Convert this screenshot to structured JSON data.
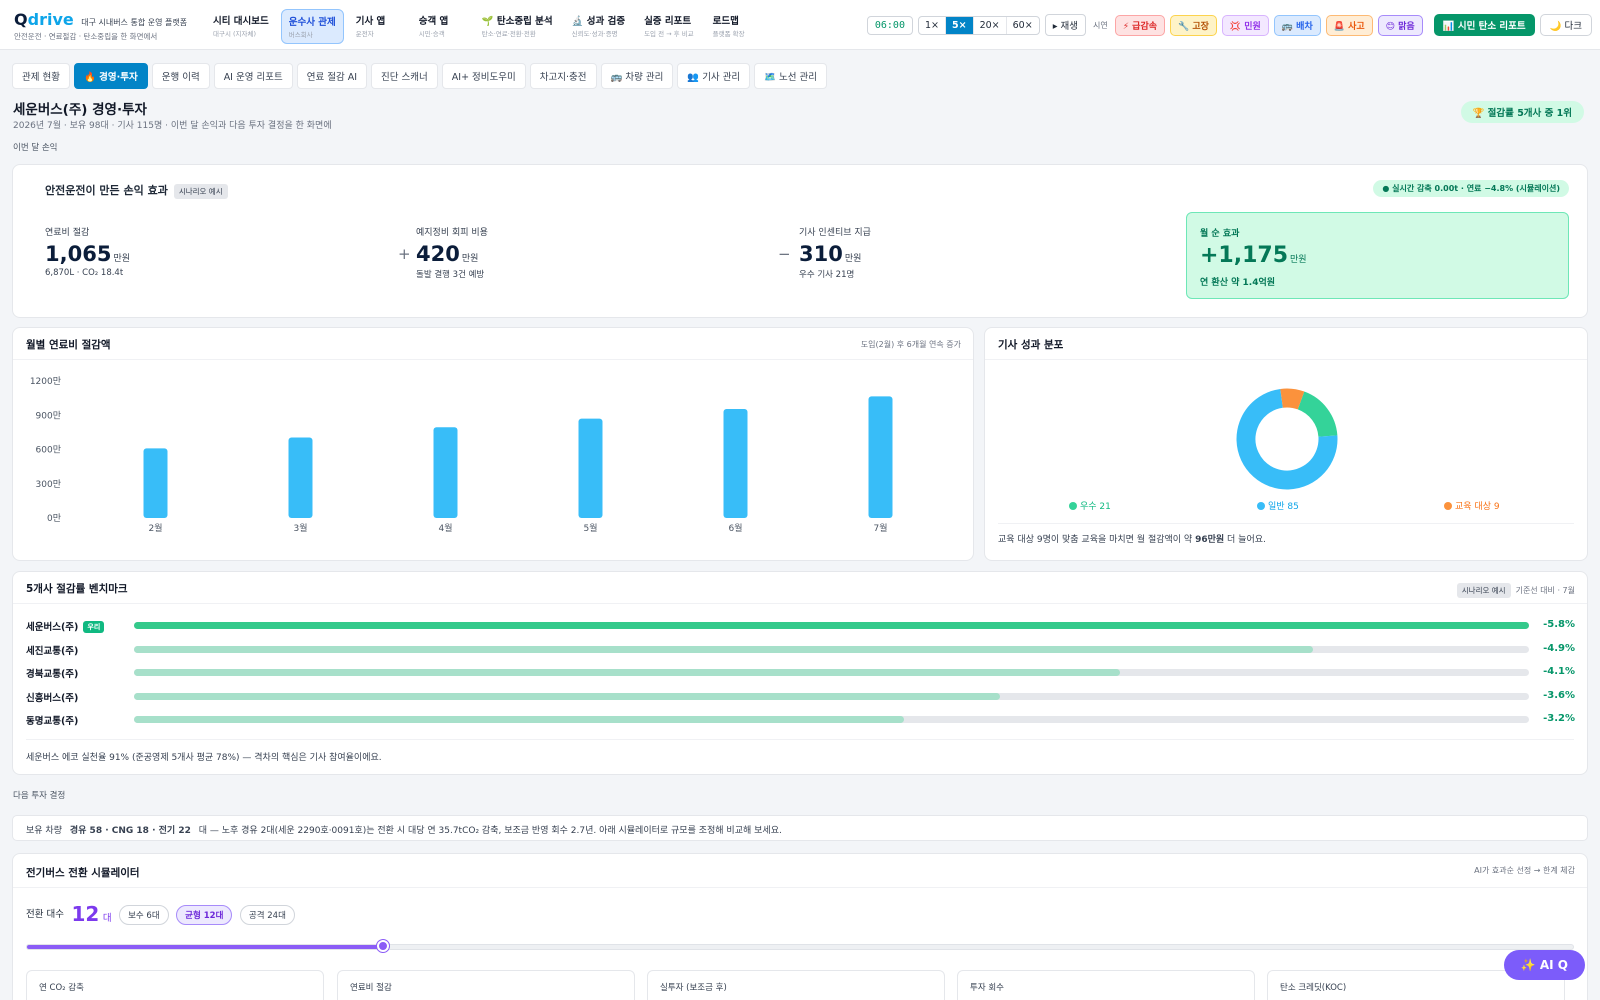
{
  "brand": {
    "name_q": "Q",
    "name_rest": "drive",
    "tagline": "대구 시내버스 통합 운영 플랫폼",
    "subline": "안전운전 · 연료절감 · 탄소중립을 한 화면에서"
  },
  "nav": [
    {
      "title": "시티 대시보드",
      "sub": "대구시 (지자체)"
    },
    {
      "title": "운수사 관제",
      "sub": "버스회사"
    },
    {
      "title": "기사 앱",
      "sub": "운전자"
    },
    {
      "title": "승객 앱",
      "sub": "시민·승객"
    },
    {
      "title": "🌱 탄소중립 분석",
      "sub": "탄소·연료·전환·전환"
    },
    {
      "title": "🔬 성과 검증",
      "sub": "신뢰도·성과·증명"
    },
    {
      "title": "실증 리포트",
      "sub": "도입 전 → 후 비교"
    },
    {
      "title": "로드맵",
      "sub": "플랫폼 확장"
    }
  ],
  "controls": {
    "clock": "06:00",
    "speeds": [
      "1×",
      "5×",
      "20×",
      "60×"
    ],
    "speed_selected": "5×",
    "play": "▸ 재생",
    "scenario_label": "시연",
    "scenarios": [
      "⚡ 급감속",
      "🔧 고장",
      "💢 민원",
      "🚌 배차",
      "🚨 사고",
      "😊 맑음"
    ],
    "report_button": "📊 시민 탄소 리포트",
    "dark_button": "🌙 다크"
  },
  "tabs": [
    "관제 현황",
    "🔥 경영·투자",
    "운행 이력",
    "AI 운영 리포트",
    "연료 절감 AI",
    "진단 스캐너",
    "AI+ 정비도우미",
    "차고지·충전",
    "🚌 차량 관리",
    "👥 기사 관리",
    "🗺️ 노선 관리"
  ],
  "tab_selected": "🔥 경영·투자",
  "page": {
    "title": "세운버스(주) 경영·투자",
    "subtitle": "2026년 7월 · 보유 98대 · 기사 115명 · 이번 달 손익과 다음 투자 결정을 한 화면에",
    "rank_badge": "🏆 절감률 5개사 중 1위"
  },
  "section_month": "이번 달 손익",
  "pl": {
    "title": "안전운전이 만든 손익 효과",
    "scenario_tag": "시나리오 예시",
    "live": "● 실시간 감축 0.00t · 연료 −4.8% (시뮬레이션)",
    "fuel": {
      "label": "연료비 절감",
      "value": "1,065",
      "unit": "만원",
      "note": "6,870L · CO₂ 18.4t"
    },
    "plus": "+",
    "maint": {
      "label": "예지정비 회피 비용",
      "value": "420",
      "unit": "만원",
      "note": "돌발 결행 3건 예방"
    },
    "minus": "−",
    "incentive": {
      "label": "기사 인센티브 지급",
      "value": "310",
      "unit": "만원",
      "note": "우수 기사 21명"
    },
    "net": {
      "label": "월 순 효과",
      "value": "+1,175",
      "unit": "만원",
      "note": "연 환산 약 1.4억원"
    }
  },
  "fuel_chart": {
    "title": "월별 연료비 절감액",
    "subtitle": "도입(2월) 후 6개월 연속 증가"
  },
  "chart_data": [
    {
      "type": "bar",
      "title": "월별 연료비 절감액",
      "categories": [
        "2월",
        "3월",
        "4월",
        "5월",
        "6월",
        "7월"
      ],
      "values": [
        610,
        705,
        795,
        870,
        955,
        1065
      ],
      "ylim": [
        0,
        1200
      ],
      "yticks": [
        "0만",
        "300만",
        "600만",
        "900만",
        "1200만"
      ],
      "ytick_values": [
        0,
        300,
        600,
        900,
        1200
      ],
      "color": "#38bdf8",
      "grid": false
    },
    {
      "type": "pie",
      "title": "기사 성과 분포",
      "categories": [
        "우수",
        "일반",
        "교육 대상"
      ],
      "values": [
        21,
        85,
        9
      ],
      "colors": [
        "#34d399",
        "#38bdf8",
        "#fb923c"
      ]
    },
    {
      "type": "bar",
      "title": "5개사 절감률 벤치마크",
      "categories": [
        "세운버스(주)",
        "세진교통(주)",
        "경북교통(주)",
        "신흥버스(주)",
        "동명교통(주)"
      ],
      "values": [
        -5.8,
        -4.9,
        -4.1,
        -3.6,
        -3.2
      ]
    }
  ],
  "drivers": {
    "title": "기사 성과 분포",
    "legend": [
      "우수 21",
      "일반 85",
      "교육 대상 9"
    ],
    "note_pre": "교육 대상 9명이 맞춤 교육을 마치면 월 절감액이 약 ",
    "note_bold": "96만원",
    "note_post": " 더 늘어요."
  },
  "benchmark": {
    "title": "5개사 절감률 벤치마크",
    "tag": "시나리오 예시",
    "sub": "기준선 대비 · 7월",
    "our_label": "우리",
    "rows": [
      {
        "name": "세운버스(주)",
        "value": "-5.8%",
        "pct": 5.8
      },
      {
        "name": "세진교통(주)",
        "value": "-4.9%",
        "pct": 4.9
      },
      {
        "name": "경북교통(주)",
        "value": "-4.1%",
        "pct": 4.1
      },
      {
        "name": "신흥버스(주)",
        "value": "-3.6%",
        "pct": 3.6
      },
      {
        "name": "동명교통(주)",
        "value": "-3.2%",
        "pct": 3.2
      }
    ],
    "note": "세운버스 에코 실천율 91% (준공영제 5개사 평균 78%) — 격차의 핵심은 기사 참여율이에요."
  },
  "section_invest": "다음 투자 결정",
  "fleet": {
    "pre": "보유 차량",
    "bold": "경유 58 · CNG 18 · 전기 22",
    "post": "대 — 노후 경유 2대(세운 2290호·0091호)는 전환 시 대당 연 35.7tCO₂ 감축, 보조금 반영 회수 2.7년. 아래 시뮬레이터로 규모를 조정해 비교해 보세요."
  },
  "sim": {
    "title": "전기버스 전환 시뮬레이터",
    "sub": "AI가 효과순 선정 → 한계 체감",
    "count_label": "전환 대수",
    "count_value": "12",
    "count_unit": "대",
    "chips": [
      "보수 6대",
      "균형 12대",
      "공격 24대"
    ],
    "chip_selected": "균형 12대",
    "slider_fraction": 0.23,
    "cards": [
      "연 CO₂ 감축",
      "연료비 절감",
      "실투자 (보조금 후)",
      "투자 회수",
      "탄소 크레딧(KOC)"
    ]
  },
  "aiq": "✨ AI Q",
  "colors": {
    "primary": "#0284c7",
    "accent_green": "#059669",
    "purple": "#7c3aed"
  }
}
